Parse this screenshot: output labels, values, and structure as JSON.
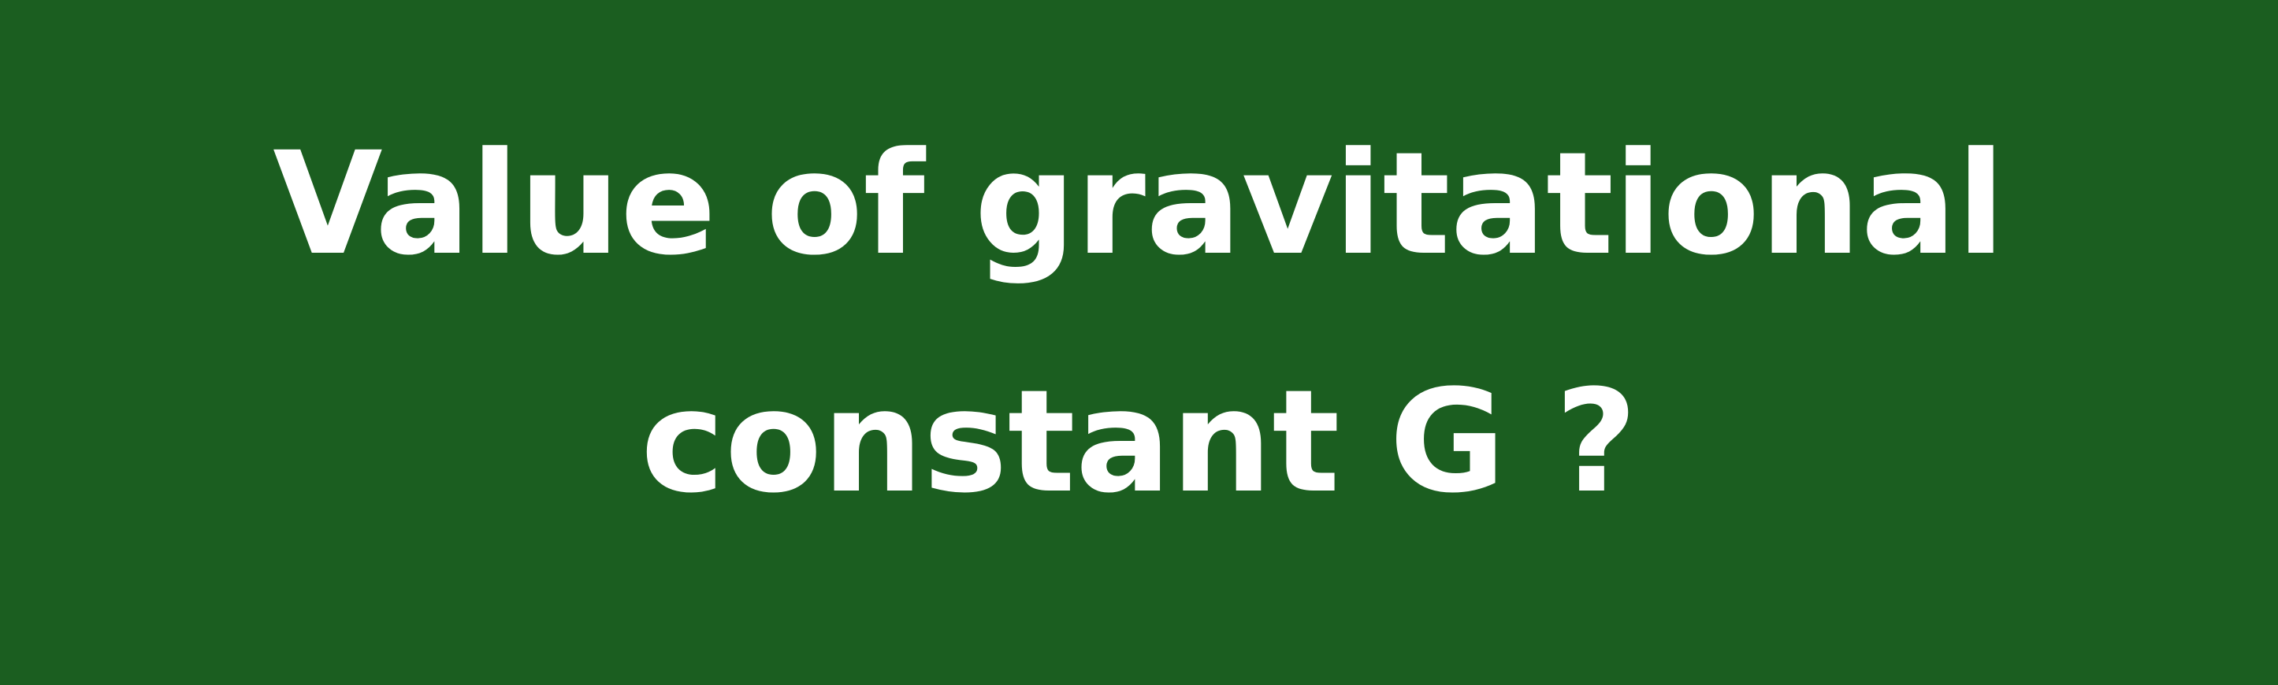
{
  "slide": {
    "background_color": "#1b5e20",
    "text_color": "#ffffff",
    "question_lines": [
      "Value of gravitational",
      "constant G ?"
    ]
  }
}
